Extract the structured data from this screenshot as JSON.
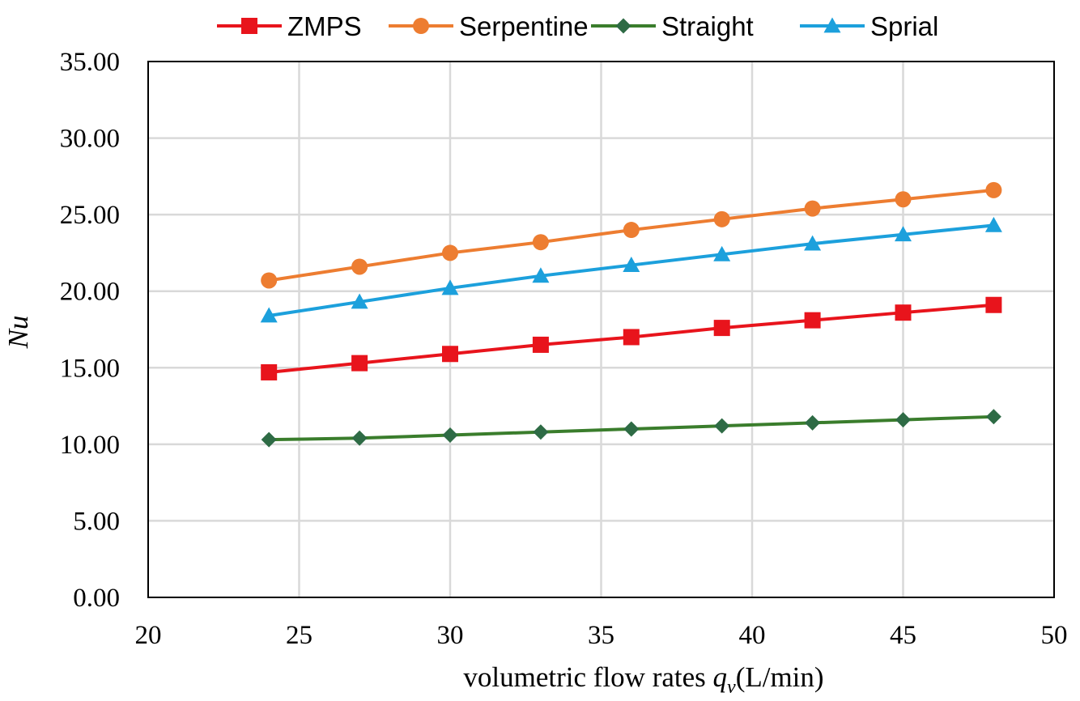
{
  "chart_data": {
    "type": "line",
    "title": "",
    "xlabel": {
      "prefix": "volumetric flow rates ",
      "var": "q",
      "sub": "v",
      "suffix": "(L/min)"
    },
    "ylabel": "Nu",
    "xlim": [
      20,
      50
    ],
    "ylim": [
      0,
      35
    ],
    "x_ticks": [
      20,
      25,
      30,
      35,
      40,
      45,
      50
    ],
    "x_tick_labels": [
      "20",
      "25",
      "30",
      "35",
      "40",
      "45",
      "50"
    ],
    "y_ticks": [
      0,
      5,
      10,
      15,
      20,
      25,
      30,
      35
    ],
    "y_tick_labels": [
      "0.00",
      "5.00",
      "10.00",
      "15.00",
      "20.00",
      "25.00",
      "30.00",
      "35.00"
    ],
    "grid": true,
    "legend_position": "top-center",
    "x": [
      24,
      27,
      30,
      33,
      36,
      39,
      42,
      45,
      48
    ],
    "series": [
      {
        "name": "ZMPS",
        "color": "#e8141c",
        "marker": "square",
        "values": [
          14.7,
          15.3,
          15.9,
          16.5,
          17.0,
          17.6,
          18.1,
          18.6,
          19.1
        ]
      },
      {
        "name": "Serpentine",
        "color": "#ed7d31",
        "marker": "circle",
        "values": [
          20.7,
          21.6,
          22.5,
          23.2,
          24.0,
          24.7,
          25.4,
          26.0,
          26.6
        ]
      },
      {
        "name": "Straight",
        "color": "#3a7d2c",
        "marker_color": "#2e6b45",
        "marker": "diamond",
        "values": [
          10.3,
          10.4,
          10.6,
          10.8,
          11.0,
          11.2,
          11.4,
          11.6,
          11.8
        ]
      },
      {
        "name": "Sprial",
        "color": "#1ca0dc",
        "marker": "triangle",
        "values": [
          18.4,
          19.3,
          20.2,
          21.0,
          21.7,
          22.4,
          23.1,
          23.7,
          24.3
        ]
      }
    ]
  }
}
